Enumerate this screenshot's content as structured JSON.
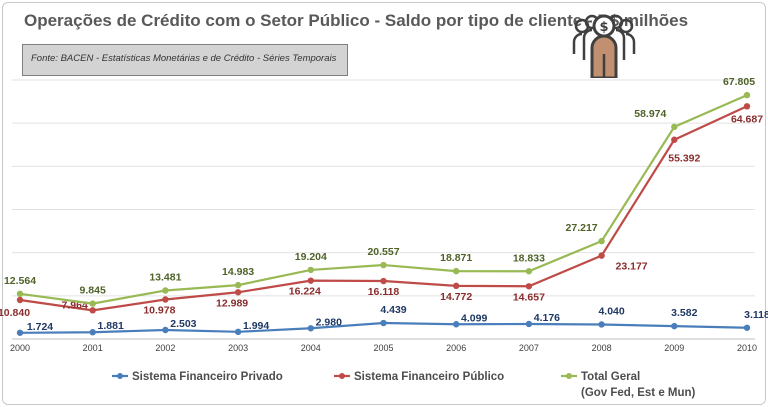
{
  "title": "Operações de Crédito com o Setor Público - Saldo por tipo de cliente - R$ milhões",
  "source": "Fonte: BACEN - Estatísticas  Monetárias  e de Crédito  - Séries Temporais",
  "icon": "people-money-icon",
  "chart_data": {
    "type": "line",
    "title": "Operações de Crédito com o Setor Público - Saldo por tipo de cliente - R$ milhões",
    "xlabel": "",
    "ylabel": "",
    "categories": [
      "2000",
      "2001",
      "2002",
      "2003",
      "2004",
      "2005",
      "2006",
      "2007",
      "2008",
      "2009",
      "2010"
    ],
    "grid": true,
    "legend": "bottom",
    "ylim": [
      0,
      72000
    ],
    "series": [
      {
        "name": "Sistema Financeiro Privado",
        "color": "#4a7ebb",
        "labelColor": "#1f3864",
        "values": [
          1724,
          1881,
          2503,
          1994,
          2980,
          4439,
          4099,
          4176,
          4040,
          3582,
          3118
        ],
        "labels": [
          "1.724",
          "1.881",
          "2.503",
          "1.994",
          "2.980",
          "4.439",
          "4.099",
          "4.176",
          "4.040",
          "3.582",
          "3.118"
        ]
      },
      {
        "name": "Sistema Financeiro Público",
        "color": "#be4b48",
        "labelColor": "#8b2c2c",
        "values": [
          10840,
          7964,
          10978,
          12989,
          16224,
          16118,
          14772,
          14657,
          23177,
          55392,
          64687
        ],
        "labels": [
          "10.840",
          "7.964",
          "10.978",
          "12.989",
          "16.224",
          "16.118",
          "14.772",
          "14.657",
          "23.177",
          "55.392",
          "64.687"
        ]
      },
      {
        "name": "Total Geral",
        "name2": "(Gov Fed, Est e Mun)",
        "color": "#98b954",
        "labelColor": "#4f6228",
        "values": [
          12564,
          9845,
          13481,
          14983,
          19204,
          20557,
          18871,
          18833,
          27217,
          58974,
          67805
        ],
        "labels": [
          "12.564",
          "9.845",
          "13.481",
          "14.983",
          "19.204",
          "20.557",
          "18.871",
          "18.833",
          "27.217",
          "58.974",
          "67.805"
        ]
      }
    ]
  }
}
